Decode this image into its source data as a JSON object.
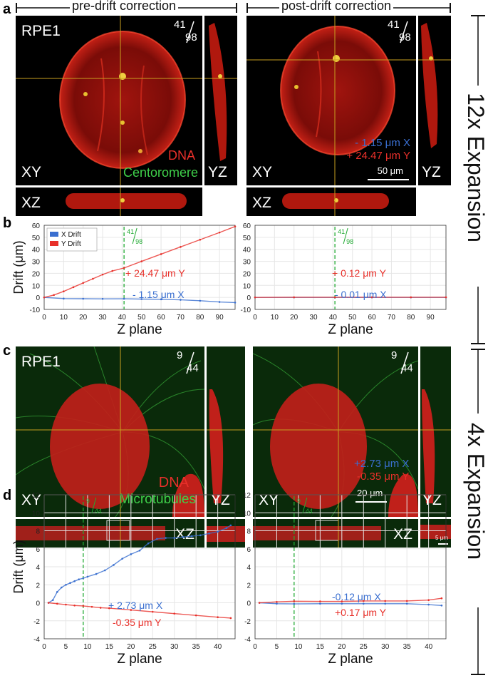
{
  "panel_letters": {
    "a": "a",
    "b": "b",
    "c": "c",
    "d": "d"
  },
  "headers": {
    "pre": "pre-drift correction",
    "post": "post-drift correction"
  },
  "side_labels": {
    "top": "12x Expansion",
    "bottom": "4x Expansion"
  },
  "panel_a": {
    "cell_line": "RPE1",
    "frame_num": "41",
    "frame_den": "98",
    "views": {
      "xy": "XY",
      "yz": "YZ",
      "xz": "XZ"
    },
    "stain1": "DNA",
    "stain2": "Centoromere",
    "drift_x": "- 1.15 μm X",
    "drift_y": "+ 24.47 μm Y",
    "scale_bar": "50 μm"
  },
  "panel_c": {
    "cell_line": "RPE1",
    "frame_num": "9",
    "frame_den": "44",
    "views": {
      "xy": "XY",
      "yz": "YZ",
      "xz": "XZ"
    },
    "stain1": "DNA",
    "stain2": "Microtubules",
    "drift_x": "+2.73 μm X",
    "drift_y": "-0.35 μm Y",
    "scale_bar": "20 μm",
    "scale_bar_small": "5 μm"
  },
  "colors": {
    "x_drift": "#3a6fd0",
    "y_drift": "#e8302a",
    "marker": "#22aa33",
    "dna": "#e8302a",
    "stain2": "#3fd04a"
  },
  "chart_data": [
    {
      "id": "b-left",
      "type": "line",
      "ylabel": "Drift (μm)",
      "xlabel": "Z plane",
      "xlim": [
        0,
        98
      ],
      "ylim": [
        -10,
        60
      ],
      "xticks": [
        0,
        10,
        20,
        30,
        40,
        50,
        60,
        70,
        80,
        90
      ],
      "yticks": [
        -10,
        0,
        10,
        20,
        30,
        40,
        50,
        60
      ],
      "marker_x": 41,
      "marker_num": "41",
      "marker_den": "98",
      "legend": [
        "X Drift",
        "Y Drift"
      ],
      "series": [
        {
          "name": "X Drift",
          "x": [
            0,
            10,
            20,
            30,
            41,
            50,
            60,
            70,
            80,
            90,
            98
          ],
          "values": [
            0,
            -1.0,
            -1.1,
            -1.2,
            -1.15,
            -1.4,
            -1.6,
            -2.0,
            -2.8,
            -3.8,
            -4.3
          ]
        },
        {
          "name": "Y Drift",
          "x": [
            0,
            5,
            10,
            15,
            20,
            25,
            30,
            35,
            41,
            50,
            60,
            70,
            80,
            90,
            98
          ],
          "values": [
            0,
            2.0,
            5.0,
            8.5,
            12.0,
            15.5,
            19.0,
            22.0,
            24.47,
            30.0,
            36.0,
            42.0,
            48.0,
            54.0,
            59.0
          ]
        }
      ],
      "annot_y": "+ 24.47 μm Y",
      "annot_x": "- 1.15 μm X"
    },
    {
      "id": "b-right",
      "type": "line",
      "xlabel": "Z plane",
      "xlim": [
        0,
        98
      ],
      "ylim": [
        -10,
        60
      ],
      "xticks": [
        0,
        10,
        20,
        30,
        40,
        50,
        60,
        70,
        80,
        90
      ],
      "yticks": [
        -10,
        0,
        10,
        20,
        30,
        40,
        50,
        60
      ],
      "marker_x": 41,
      "marker_num": "41",
      "marker_den": "98",
      "series": [
        {
          "name": "X Drift",
          "x": [
            0,
            20,
            41,
            60,
            80,
            98
          ],
          "values": [
            0,
            0.0,
            -0.01,
            0.0,
            0.0,
            0.0
          ]
        },
        {
          "name": "Y Drift",
          "x": [
            0,
            20,
            41,
            60,
            80,
            98
          ],
          "values": [
            0,
            0.1,
            0.12,
            0.1,
            0.1,
            0.1
          ]
        }
      ],
      "annot_y": "+ 0.12 μm Y",
      "annot_x": "- 0.01 μm X"
    },
    {
      "id": "d-left",
      "type": "line",
      "ylabel": "Drift (μm)",
      "xlabel": "Z plane",
      "xlim": [
        0,
        44
      ],
      "ylim": [
        -4,
        12
      ],
      "xticks": [
        0,
        5,
        10,
        15,
        20,
        25,
        30,
        35,
        40
      ],
      "yticks": [
        -4,
        -2,
        0,
        2,
        4,
        6,
        8,
        10,
        12
      ],
      "marker_x": 9,
      "marker_num": "9",
      "marker_den": "44",
      "series": [
        {
          "name": "X Drift",
          "x": [
            1,
            2,
            3,
            4,
            5,
            6,
            7,
            8,
            9,
            10,
            12,
            14,
            16,
            18,
            20,
            22,
            24,
            26,
            28,
            30,
            32,
            34,
            36,
            38,
            40,
            42,
            43
          ],
          "values": [
            0,
            0.3,
            1.2,
            1.7,
            2.0,
            2.2,
            2.4,
            2.6,
            2.73,
            2.9,
            3.2,
            3.6,
            4.2,
            4.9,
            5.4,
            5.8,
            6.6,
            7.1,
            7.2,
            7.2,
            7.3,
            7.4,
            7.5,
            7.7,
            7.9,
            8.3,
            8.6
          ]
        },
        {
          "name": "Y Drift",
          "x": [
            1,
            3,
            5,
            7,
            9,
            11,
            13,
            15,
            20,
            25,
            30,
            35,
            40,
            43
          ],
          "values": [
            0,
            -0.1,
            -0.2,
            -0.3,
            -0.35,
            -0.45,
            -0.55,
            -0.6,
            -0.8,
            -1.0,
            -1.2,
            -1.4,
            -1.6,
            -1.7
          ]
        }
      ],
      "annot_x": "+ 2.73 μm X",
      "annot_y": "-0.35 μm Y"
    },
    {
      "id": "d-right",
      "type": "line",
      "xlabel": "Z plane",
      "xlim": [
        0,
        44
      ],
      "ylim": [
        -4,
        12
      ],
      "xticks": [
        0,
        5,
        10,
        15,
        20,
        25,
        30,
        35,
        40
      ],
      "yticks": [
        -4,
        -2,
        0,
        2,
        4,
        6,
        8,
        10,
        12
      ],
      "marker_x": 9,
      "marker_num": "9",
      "marker_den": "44",
      "series": [
        {
          "name": "X Drift",
          "x": [
            1,
            5,
            9,
            15,
            20,
            25,
            30,
            35,
            40,
            43
          ],
          "values": [
            0,
            -0.1,
            -0.12,
            -0.1,
            -0.1,
            -0.1,
            -0.1,
            -0.1,
            -0.2,
            -0.3
          ]
        },
        {
          "name": "Y Drift",
          "x": [
            1,
            5,
            9,
            15,
            20,
            25,
            30,
            35,
            40,
            43
          ],
          "values": [
            0,
            0.1,
            0.17,
            0.15,
            0.15,
            0.2,
            0.2,
            0.2,
            0.3,
            0.5
          ]
        }
      ],
      "annot_x": "-0.12 μm X",
      "annot_y": "+0.17 μm Y"
    }
  ]
}
